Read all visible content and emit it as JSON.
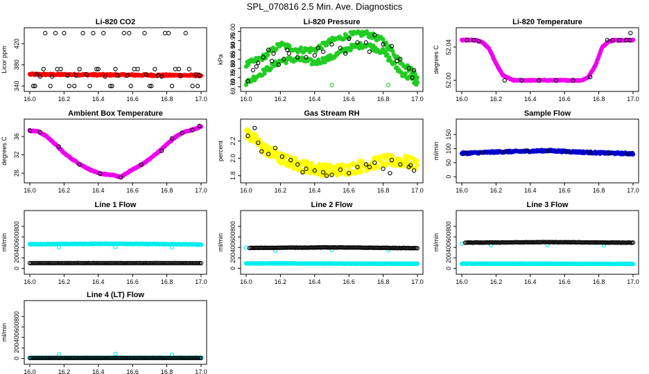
{
  "page": {
    "title": "SPL_070816  2.5 Min. Ave. Diagnostics"
  },
  "colors": {
    "red": "#ff0000",
    "green": "#22cc22",
    "magenta": "#ee00ee",
    "yellow": "#ffff00",
    "blue": "#0000cc",
    "cyan": "#00eeee",
    "black": "#000000"
  },
  "chart_data": [
    {
      "type": "scatter",
      "title": "Li-820 CO2",
      "ylabel": "Licor ppm",
      "xlim": [
        16.0,
        17.0
      ],
      "xticks": [
        "16.0",
        "16.2",
        "16.4",
        "16.6",
        "16.8",
        "17.0"
      ],
      "ylim": [
        335,
        445
      ],
      "yticks": [
        "340",
        "380",
        "420"
      ],
      "ytick_values": [
        340,
        380,
        420
      ],
      "series": [
        {
          "color": "red",
          "shape": "dense",
          "x_range": [
            16.0,
            17.0
          ],
          "y_start": 362,
          "y_end": 360,
          "noise": 1.5,
          "n": 220
        },
        {
          "color": "black",
          "shape": "open",
          "x": [
            16.03,
            16.06,
            16.09,
            16.12,
            16.16,
            16.2,
            16.23,
            16.27,
            16.31,
            16.35,
            16.39,
            16.43,
            16.47,
            16.51,
            16.55,
            16.59,
            16.63,
            16.67,
            16.71,
            16.75,
            16.79,
            16.83,
            16.87,
            16.91,
            16.95,
            16.99,
            16.04,
            16.13,
            16.22,
            16.33,
            16.44,
            16.57,
            16.68,
            16.77,
            16.88,
            16.97,
            16.08,
            16.18,
            16.29,
            16.4,
            16.5,
            16.61,
            16.73,
            16.85,
            16.93,
            16.02,
            16.15,
            16.26,
            16.37,
            16.48,
            16.58,
            16.7,
            16.81,
            16.98
          ],
          "y": [
            340,
            358,
            440,
            340,
            372,
            440,
            340,
            360,
            440,
            340,
            372,
            440,
            340,
            360,
            440,
            340,
            372,
            440,
            340,
            360,
            440,
            340,
            372,
            440,
            340,
            360,
            362,
            358,
            360,
            362,
            358,
            360,
            362,
            358,
            360,
            362,
            372,
            372,
            372,
            372,
            372,
            372,
            372,
            372,
            372,
            340,
            440,
            340,
            440,
            340,
            440,
            340,
            440,
            340
          ]
        }
      ]
    },
    {
      "type": "scatter",
      "title": "Li-820 Pressure",
      "ylabel": "kPa",
      "xlim": [
        16.0,
        17.0
      ],
      "xticks": [
        "16.0",
        "16.2",
        "16.4",
        "16.6",
        "16.8",
        "17.0"
      ],
      "ylim": [
        69.69,
        70.005
      ],
      "yticks": [
        "69.70",
        "69.75",
        "69.80",
        "69.85",
        "69.90",
        "69.95",
        "70.00"
      ],
      "ytick_values": [
        69.7,
        69.75,
        69.8,
        69.85,
        69.9,
        69.95,
        70.0
      ],
      "series": [
        {
          "color": "green",
          "shape": "band",
          "x": [
            16.0,
            16.1,
            16.2,
            16.3,
            16.4,
            16.5,
            16.6,
            16.7,
            16.8,
            16.9,
            17.0
          ],
          "y": [
            69.82,
            69.86,
            69.93,
            69.9,
            69.9,
            69.95,
            69.98,
            69.99,
            69.95,
            69.84,
            69.76
          ],
          "noise": 0.015,
          "n": 160
        },
        {
          "color": "green",
          "shape": "band",
          "x": [
            16.0,
            16.1,
            16.2,
            16.3,
            16.4,
            16.5,
            16.6,
            16.7,
            16.8,
            16.9,
            17.0
          ],
          "y": [
            69.72,
            69.78,
            69.84,
            69.85,
            69.83,
            69.86,
            69.91,
            69.93,
            69.89,
            69.78,
            69.72
          ],
          "noise": 0.015,
          "n": 160
        },
        {
          "color": "green",
          "shape": "open",
          "x": [
            16.5,
            16.83
          ],
          "y": [
            69.71,
            69.71
          ]
        },
        {
          "color": "black",
          "shape": "open",
          "x": [
            16.01,
            16.04,
            16.07,
            16.1,
            16.13,
            16.16,
            16.19,
            16.22,
            16.25,
            16.3,
            16.35,
            16.4,
            16.45,
            16.5,
            16.55,
            16.6,
            16.65,
            16.7,
            16.75,
            16.8,
            16.85,
            16.9,
            16.95,
            16.98,
            16.06,
            16.15,
            16.24,
            16.42,
            16.58,
            16.72,
            16.88,
            16.97
          ],
          "y": [
            69.73,
            69.79,
            69.83,
            69.86,
            69.9,
            69.88,
            69.82,
            69.85,
            69.88,
            69.86,
            69.86,
            69.87,
            69.89,
            69.93,
            69.91,
            69.96,
            69.94,
            69.94,
            69.98,
            69.93,
            69.92,
            69.85,
            69.8,
            69.79,
            69.81,
            69.84,
            69.9,
            69.91,
            69.88,
            69.89,
            69.84,
            69.75
          ]
        }
      ]
    },
    {
      "type": "scatter",
      "title": "Li-820 Temperature",
      "ylabel": "degrees C",
      "xlim": [
        16.0,
        17.0
      ],
      "xticks": [
        "16.0",
        "16.2",
        "16.4",
        "16.6",
        "16.8",
        "17.0"
      ],
      "ylim": [
        51.99,
        52.06
      ],
      "yticks": [
        "52.00",
        "52.04"
      ],
      "ytick_values": [
        52.0,
        52.04
      ],
      "series": [
        {
          "color": "magenta",
          "shape": "dense",
          "x": [
            16.0,
            16.08,
            16.12,
            16.16,
            16.2,
            16.24,
            16.3,
            16.4,
            16.6,
            16.7,
            16.74,
            16.78,
            16.82,
            16.86,
            16.9,
            17.0
          ],
          "y": [
            52.0484,
            52.0484,
            52.046,
            52.038,
            52.02,
            52.006,
            52.0,
            52.0,
            52.0,
            52.0,
            52.004,
            52.018,
            52.04,
            52.047,
            52.0484,
            52.0484
          ],
          "noise": 0.0005,
          "n": 260
        },
        {
          "color": "black",
          "shape": "open",
          "x": [
            16.03,
            16.07,
            16.1,
            16.25,
            16.35,
            16.45,
            16.55,
            16.65,
            16.75,
            16.85,
            16.88,
            16.92,
            16.96,
            16.98,
            16.985
          ],
          "y": [
            52.0484,
            52.0484,
            52.047,
            52.0,
            52.0,
            52.0,
            52.0,
            52.0,
            52.004,
            52.0484,
            52.0484,
            52.0484,
            52.0484,
            52.0484,
            52.057
          ]
        }
      ]
    },
    {
      "type": "scatter",
      "title": "Ambient Box Temperature",
      "ylabel": "degrees C",
      "xlim": [
        16.0,
        17.0
      ],
      "xticks": [
        "16.0",
        "16.2",
        "16.4",
        "16.6",
        "16.8",
        "17.0"
      ],
      "ylim": [
        26.5,
        39.2
      ],
      "yticks": [
        "28",
        "32",
        "36"
      ],
      "ytick_values": [
        28,
        32,
        36
      ],
      "series": [
        {
          "color": "magenta",
          "shape": "dense",
          "x": [
            16.0,
            16.05,
            16.1,
            16.15,
            16.2,
            16.25,
            16.3,
            16.35,
            16.4,
            16.45,
            16.5,
            16.53,
            16.56,
            16.6,
            16.65,
            16.7,
            16.75,
            16.8,
            16.85,
            16.9,
            16.95,
            17.0
          ],
          "y": [
            37.3,
            37.1,
            36.0,
            34.3,
            32.4,
            31.0,
            29.8,
            28.8,
            28.0,
            27.7,
            27.5,
            27.1,
            27.9,
            28.8,
            29.8,
            31.1,
            32.6,
            34.3,
            35.9,
            37.0,
            37.5,
            38.2
          ],
          "noise": 0.1,
          "n": 260
        },
        {
          "color": "black",
          "shape": "open",
          "x": [
            16.0,
            16.06,
            16.17,
            16.29,
            16.41,
            16.53,
            16.65,
            16.77,
            16.83,
            16.89,
            16.95,
            16.99
          ],
          "y": [
            37.3,
            37.0,
            33.8,
            29.9,
            27.9,
            27.1,
            29.9,
            32.9,
            35.6,
            36.8,
            37.4,
            38.3
          ]
        }
      ]
    },
    {
      "type": "scatter",
      "title": "Gas Stream RH",
      "ylabel": "percent",
      "xlim": [
        16.0,
        17.0
      ],
      "xticks": [
        "16.0",
        "16.2",
        "16.4",
        "16.6",
        "16.8",
        "17.0"
      ],
      "ylim": [
        1.75,
        2.42
      ],
      "yticks": [
        "1.8",
        "2.0",
        "2.2"
      ],
      "ytick_values": [
        1.8,
        2.0,
        2.2
      ],
      "series": [
        {
          "color": "yellow",
          "shape": "band",
          "x": [
            16.0,
            16.05,
            16.1,
            16.15,
            16.2,
            16.3,
            16.4,
            16.5,
            16.6,
            16.7,
            16.8,
            16.9,
            17.0
          ],
          "y": [
            2.3,
            2.22,
            2.12,
            2.06,
            2.0,
            1.93,
            1.88,
            1.86,
            1.88,
            1.92,
            1.97,
            1.97,
            1.94
          ],
          "noise": 0.07,
          "n": 300
        },
        {
          "color": "black",
          "shape": "open",
          "x": [
            16.01,
            16.05,
            16.09,
            16.13,
            16.17,
            16.21,
            16.26,
            16.3,
            16.35,
            16.4,
            16.45,
            16.5,
            16.55,
            16.6,
            16.65,
            16.7,
            16.75,
            16.8,
            16.85,
            16.9,
            16.95,
            16.98,
            16.07,
            16.33,
            16.47,
            16.72,
            16.84,
            16.96
          ],
          "y": [
            2.26,
            2.35,
            2.08,
            2.05,
            2.12,
            2.02,
            1.98,
            1.93,
            1.88,
            1.86,
            1.84,
            1.81,
            1.87,
            1.83,
            1.9,
            1.93,
            1.95,
            1.88,
            1.98,
            1.93,
            1.9,
            1.86,
            2.18,
            1.84,
            1.8,
            1.9,
            1.83,
            1.92
          ]
        }
      ]
    },
    {
      "type": "scatter",
      "title": "Sample Flow",
      "ylabel": "ml/min",
      "xlim": [
        16.0,
        17.0
      ],
      "xticks": [
        "16.0",
        "16.2",
        "16.4",
        "16.6",
        "16.8",
        "17.0"
      ],
      "ylim": [
        -12,
        195
      ],
      "yticks": [
        "0",
        "50",
        "100",
        "150"
      ],
      "ytick_values": [
        0,
        50,
        100,
        150
      ],
      "series": [
        {
          "color": "blue",
          "shape": "dense",
          "x": [
            16.0,
            16.2,
            16.4,
            16.5,
            16.6,
            16.8,
            17.0
          ],
          "y": [
            83,
            88,
            91,
            93,
            90,
            85,
            82
          ],
          "noise": 3,
          "n": 280
        },
        {
          "color": "black",
          "shape": "open",
          "x": [
            16.02,
            16.12,
            16.25,
            16.38,
            16.5,
            16.62,
            16.75,
            16.86,
            16.97
          ],
          "y": [
            84,
            86,
            89,
            92,
            92,
            90,
            88,
            84,
            82
          ]
        }
      ]
    },
    {
      "type": "scatter",
      "title": "Line 1 Flow",
      "ylabel": "ml/min",
      "xlim": [
        16.0,
        17.0
      ],
      "xticks": [
        "16.0",
        "16.2",
        "16.4",
        "16.6",
        "16.8",
        "17.0"
      ],
      "ylim": [
        -60,
        1050
      ],
      "yticks": [
        "0",
        "200",
        "400",
        "600",
        "800"
      ],
      "ytick_values": [
        0,
        200,
        400,
        600,
        800
      ],
      "series": [
        {
          "color": "cyan",
          "shape": "dense",
          "x": [
            16.0,
            16.5,
            17.0
          ],
          "y": [
            460,
            470,
            455
          ],
          "noise": 6,
          "n": 240
        },
        {
          "color": "cyan",
          "shape": "open",
          "x": [
            16.17,
            16.5,
            16.83
          ],
          "y": [
            400,
            410,
            400
          ]
        },
        {
          "color": "black",
          "shape": "dense",
          "x": [
            16.0,
            17.0
          ],
          "y": [
            100,
            100
          ],
          "noise": 1,
          "n": 120,
          "open": true
        }
      ]
    },
    {
      "type": "scatter",
      "title": "Line 2 Flow",
      "ylabel": "ml/min",
      "xlim": [
        16.0,
        17.0
      ],
      "xticks": [
        "16.0",
        "16.2",
        "16.4",
        "16.6",
        "16.8",
        "17.0"
      ],
      "ylim": [
        -60,
        1050
      ],
      "yticks": [
        "0",
        "200",
        "400",
        "600",
        "800"
      ],
      "ytick_values": [
        0,
        200,
        400,
        600,
        800
      ],
      "series": [
        {
          "color": "cyan",
          "shape": "dense",
          "x": [
            16.0,
            17.0
          ],
          "y": [
            95,
            88
          ],
          "noise": 3,
          "n": 220
        },
        {
          "color": "cyan",
          "shape": "open",
          "x": [
            16.0,
            16.17,
            16.5,
            16.83
          ],
          "y": [
            395,
            340,
            350,
            345
          ]
        },
        {
          "color": "black",
          "shape": "dense",
          "x": [
            16.02,
            16.5,
            17.0
          ],
          "y": [
            390,
            400,
            385
          ],
          "noise": 3,
          "n": 130,
          "open": true
        }
      ]
    },
    {
      "type": "scatter",
      "title": "Line 3 Flow",
      "ylabel": "ml/min",
      "xlim": [
        16.0,
        17.0
      ],
      "xticks": [
        "16.0",
        "16.2",
        "16.4",
        "16.6",
        "16.8",
        "17.0"
      ],
      "ylim": [
        -60,
        1050
      ],
      "yticks": [
        "0",
        "200",
        "400",
        "600",
        "800"
      ],
      "ytick_values": [
        0,
        200,
        400,
        600,
        800
      ],
      "series": [
        {
          "color": "cyan",
          "shape": "dense",
          "x": [
            16.0,
            17.0
          ],
          "y": [
            90,
            85
          ],
          "noise": 3,
          "n": 220
        },
        {
          "color": "cyan",
          "shape": "open",
          "x": [
            16.0,
            16.17,
            16.5,
            16.83
          ],
          "y": [
            470,
            440,
            450,
            440
          ]
        },
        {
          "color": "black",
          "shape": "dense",
          "x": [
            16.02,
            16.5,
            17.0
          ],
          "y": [
            490,
            500,
            490
          ],
          "noise": 3,
          "n": 130,
          "open": true
        }
      ]
    },
    {
      "type": "scatter",
      "title": "Line 4 (LT) Flow",
      "ylabel": "ml/min",
      "xlim": [
        16.0,
        17.0
      ],
      "xticks": [
        "16.0",
        "16.2",
        "16.4",
        "16.6",
        "16.8",
        "17.0"
      ],
      "ylim": [
        -60,
        1050
      ],
      "yticks": [
        "0",
        "200",
        "400",
        "600",
        "800"
      ],
      "ytick_values": [
        0,
        200,
        400,
        600,
        800
      ],
      "series": [
        {
          "color": "cyan",
          "shape": "dense",
          "x": [
            16.0,
            17.0
          ],
          "y": [
            10,
            10
          ],
          "noise": 2,
          "n": 200
        },
        {
          "color": "cyan",
          "shape": "open",
          "x": [
            16.17,
            16.5,
            16.83
          ],
          "y": [
            75,
            85,
            70
          ]
        },
        {
          "color": "black",
          "shape": "dense",
          "x": [
            16.0,
            17.0
          ],
          "y": [
            8,
            8
          ],
          "noise": 1,
          "n": 120,
          "open": true
        }
      ]
    }
  ]
}
